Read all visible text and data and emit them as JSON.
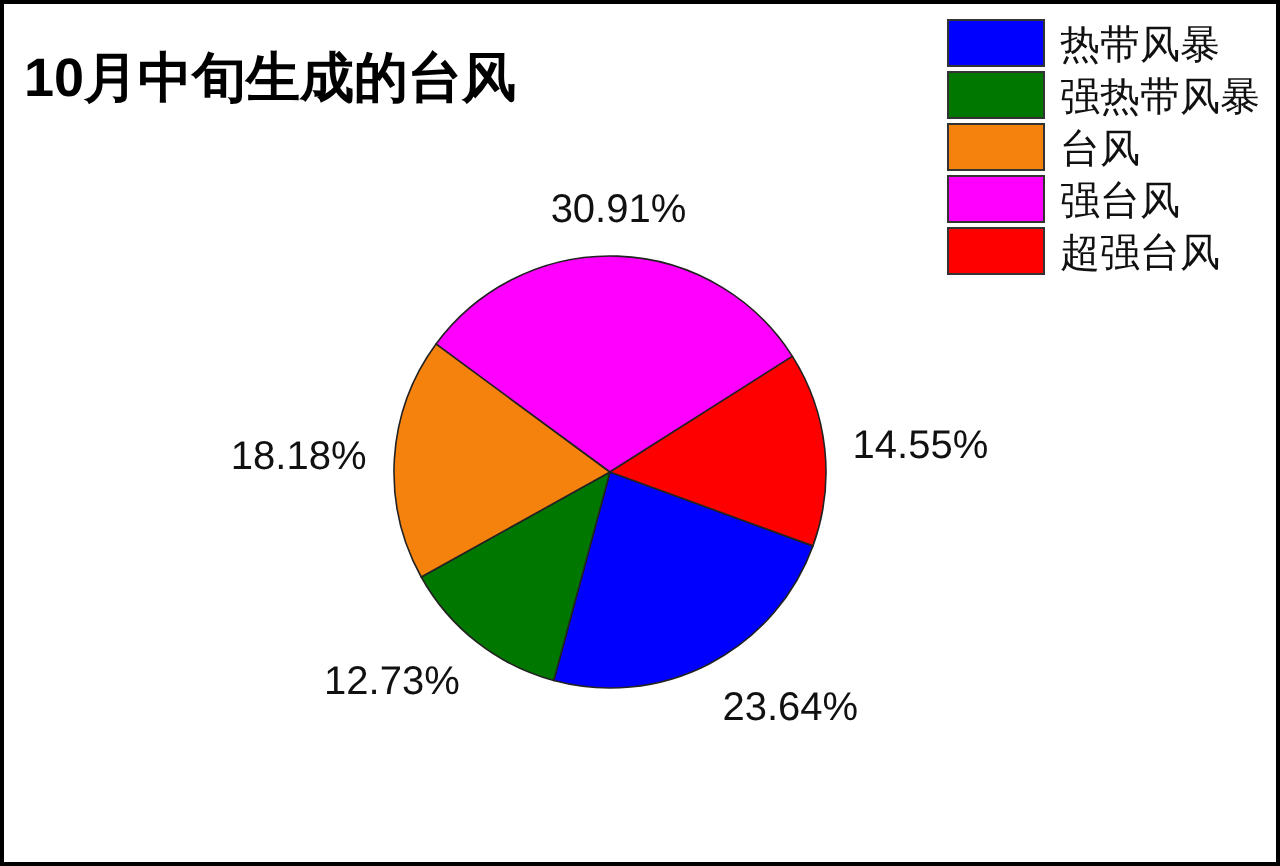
{
  "chart_data": {
    "type": "pie",
    "title": "10月中旬生成的台风",
    "categories": [
      "热带风暴",
      "强热带风暴",
      "台风",
      "强台风",
      "超强台风"
    ],
    "values": [
      23.64,
      12.73,
      18.18,
      30.91,
      14.55
    ],
    "value_labels": [
      "23.64%",
      "12.73%",
      "18.18%",
      "30.91%",
      "14.55%"
    ],
    "colors": [
      "#0000ff",
      "#007800",
      "#f5820c",
      "#ff00ff",
      "#ff0000"
    ],
    "legend": "top right"
  }
}
